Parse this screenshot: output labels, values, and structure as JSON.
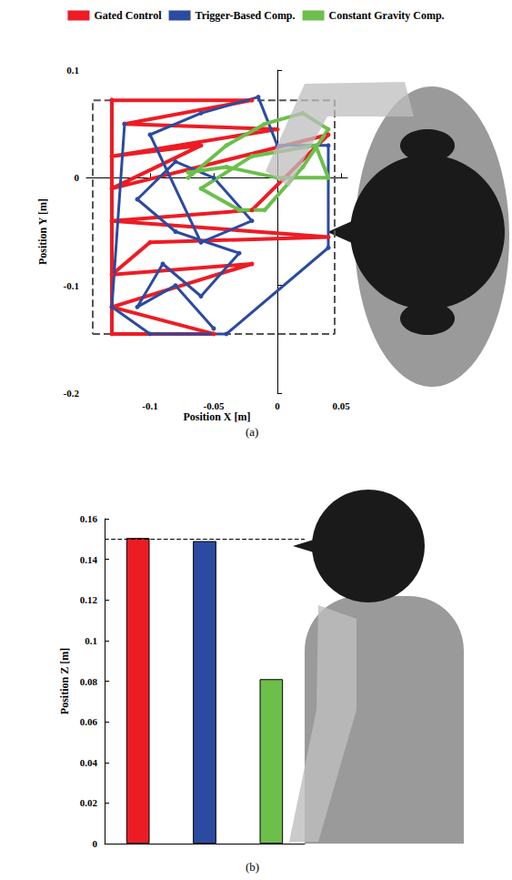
{
  "chart_data": [
    {
      "type": "line",
      "caption": "(a)",
      "x_label": "Position X [m]",
      "y_label": "Position Y [m]",
      "xlim": [
        -0.15,
        0.055
      ],
      "ylim": [
        -0.2,
        0.1
      ],
      "xticks": [
        -0.1,
        -0.05,
        0,
        0.05
      ],
      "yticks": [
        -0.2,
        -0.1,
        0,
        0.1
      ],
      "grid": false,
      "legend": "top",
      "marker": "circle",
      "box": {
        "xlim": [
          -0.145,
          0.045
        ],
        "ylim": [
          -0.145,
          0.072
        ]
      },
      "series": [
        {
          "name": "Gated Control",
          "color": "#ed1c24",
          "x": [
            -0.13,
            -0.02,
            -0.12,
            0.0,
            -0.13,
            -0.06,
            -0.13,
            0.04,
            -0.02,
            -0.13,
            0.04,
            -0.1,
            -0.13,
            -0.02,
            -0.13,
            -0.05,
            -0.13,
            -0.13
          ],
          "values": [
            0.072,
            0.072,
            0.05,
            0.045,
            0.02,
            0.03,
            -0.01,
            0.04,
            -0.03,
            -0.04,
            -0.055,
            -0.06,
            -0.09,
            -0.08,
            -0.12,
            -0.145,
            -0.145,
            0.072
          ]
        },
        {
          "name": "Trigger-Based Comp.",
          "color": "#2b4ba0",
          "x": [
            -0.05,
            -0.08,
            -0.11,
            -0.09,
            -0.06,
            -0.03,
            -0.08,
            -0.11,
            -0.08,
            -0.05,
            -0.02,
            -0.06,
            -0.1,
            -0.06,
            -0.015,
            0.0,
            0.04,
            0.04,
            -0.04,
            -0.1,
            -0.13,
            -0.12
          ],
          "values": [
            -0.14,
            -0.1,
            -0.12,
            -0.08,
            -0.11,
            -0.07,
            -0.05,
            -0.02,
            0.015,
            0.0,
            -0.04,
            -0.06,
            0.04,
            0.06,
            0.075,
            0.03,
            0.03,
            -0.065,
            -0.145,
            -0.145,
            -0.12,
            0.05
          ]
        },
        {
          "name": "Constant Gravity Comp.",
          "color": "#6cbf4b",
          "x": [
            -0.07,
            -0.04,
            -0.01,
            0.02,
            0.04,
            0.02,
            -0.01,
            -0.03,
            -0.06,
            -0.02,
            0.03,
            0.04,
            0.0,
            -0.04,
            -0.07
          ],
          "values": [
            0.0,
            0.03,
            0.05,
            0.06,
            0.045,
            0.01,
            -0.03,
            -0.03,
            -0.01,
            0.02,
            0.03,
            0.0,
            0.0,
            0.01,
            0.005
          ]
        }
      ]
    },
    {
      "type": "bar",
      "caption": "(b)",
      "y_label": "Position Z [m]",
      "categories": [
        null,
        null,
        null
      ],
      "values": [
        0.1505,
        0.149,
        0.081
      ],
      "colors": [
        "#ed1c24",
        "#2b4ba0",
        "#6cbf4b"
      ],
      "ylim": [
        0,
        0.16
      ],
      "yticks": [
        0,
        0.02,
        0.04,
        0.06,
        0.08,
        0.1,
        0.12,
        0.14,
        0.16
      ],
      "reference_line": 0.15,
      "tick_labels": "y",
      "grid": false
    }
  ]
}
